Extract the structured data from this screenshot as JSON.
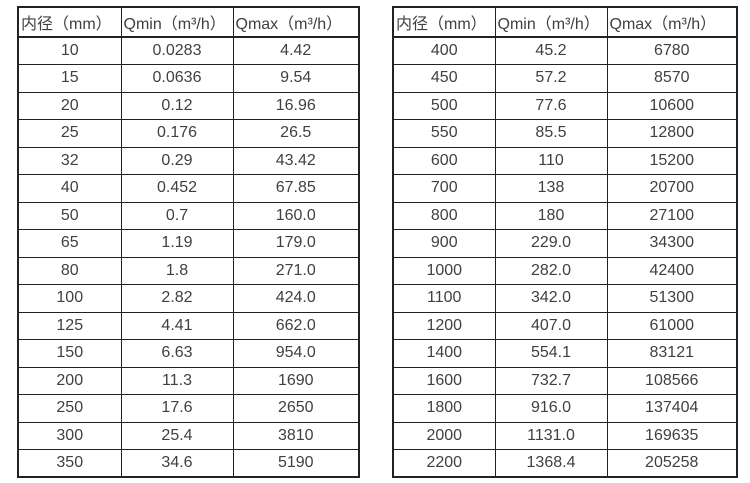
{
  "colors": {
    "background": "#ffffff",
    "border": "#222222",
    "text": "#404040"
  },
  "tables": [
    {
      "name": "flow-range-table-small-diameters",
      "headers": [
        "内径（mm）",
        "Qmin（m³/h）",
        "Qmax（m³/h）"
      ],
      "rows": [
        [
          "10",
          "0.0283",
          "4.42"
        ],
        [
          "15",
          "0.0636",
          "9.54"
        ],
        [
          "20",
          "0.12",
          "16.96"
        ],
        [
          "25",
          "0.176",
          "26.5"
        ],
        [
          "32",
          "0.29",
          "43.42"
        ],
        [
          "40",
          "0.452",
          "67.85"
        ],
        [
          "50",
          "0.7",
          "160.0"
        ],
        [
          "65",
          "1.19",
          "179.0"
        ],
        [
          "80",
          "1.8",
          "271.0"
        ],
        [
          "100",
          "2.82",
          "424.0"
        ],
        [
          "125",
          "4.41",
          "662.0"
        ],
        [
          "150",
          "6.63",
          "954.0"
        ],
        [
          "200",
          "11.3",
          "1690"
        ],
        [
          "250",
          "17.6",
          "2650"
        ],
        [
          "300",
          "25.4",
          "3810"
        ],
        [
          "350",
          "34.6",
          "5190"
        ]
      ]
    },
    {
      "name": "flow-range-table-large-diameters",
      "headers": [
        "内径（mm）",
        "Qmin（m³/h）",
        "Qmax（m³/h）"
      ],
      "rows": [
        [
          "400",
          "45.2",
          "6780"
        ],
        [
          "450",
          "57.2",
          "8570"
        ],
        [
          "500",
          "77.6",
          "10600"
        ],
        [
          "550",
          "85.5",
          "12800"
        ],
        [
          "600",
          "110",
          "15200"
        ],
        [
          "700",
          "138",
          "20700"
        ],
        [
          "800",
          "180",
          "27100"
        ],
        [
          "900",
          "229.0",
          "34300"
        ],
        [
          "1000",
          "282.0",
          "42400"
        ],
        [
          "1100",
          "342.0",
          "51300"
        ],
        [
          "1200",
          "407.0",
          "61000"
        ],
        [
          "1400",
          "554.1",
          "83121"
        ],
        [
          "1600",
          "732.7",
          "108566"
        ],
        [
          "1800",
          "916.0",
          "137404"
        ],
        [
          "2000",
          "1131.0",
          "169635"
        ],
        [
          "2200",
          "1368.4",
          "205258"
        ]
      ]
    }
  ]
}
